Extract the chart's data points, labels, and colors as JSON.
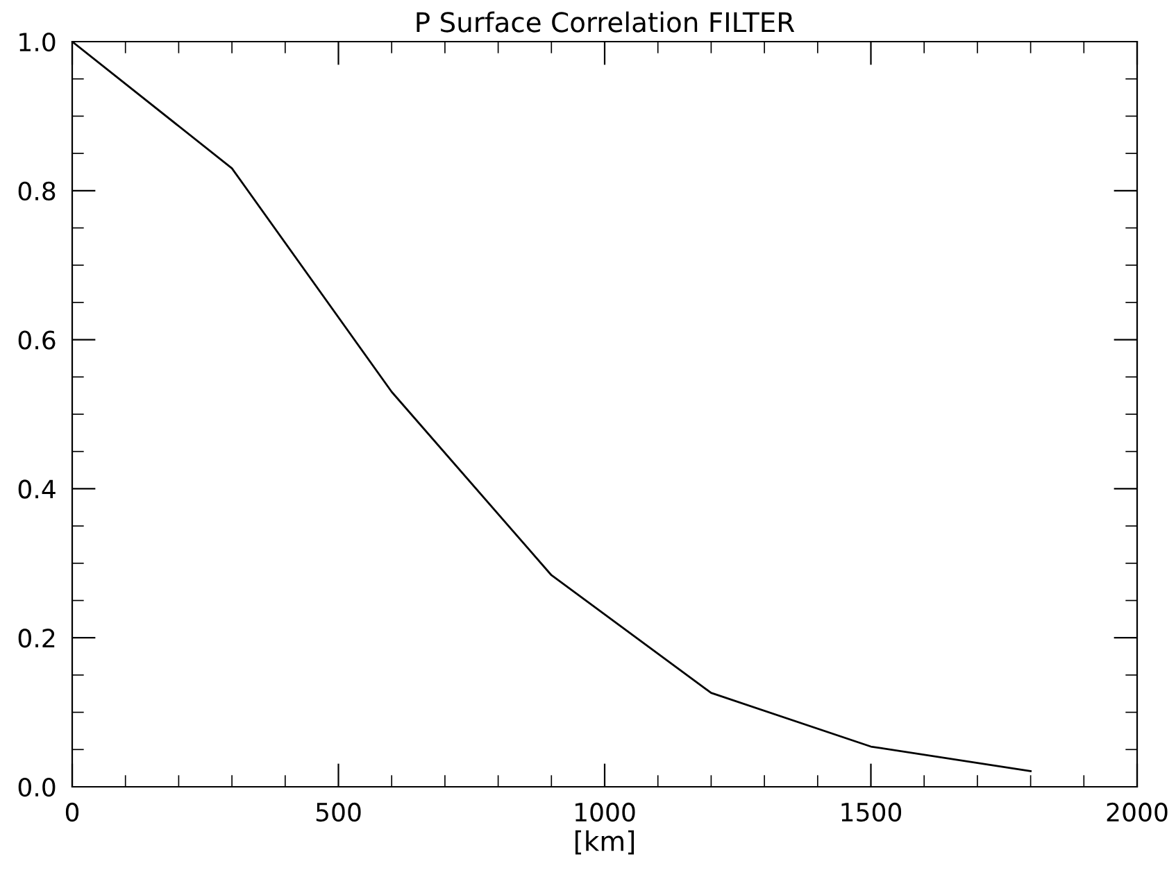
{
  "chart_data": {
    "type": "line",
    "title": "P Surface Correlation FILTER",
    "xlabel": "[km]",
    "x": [
      0,
      300,
      600,
      900,
      1200,
      1500,
      1800
    ],
    "series": [
      {
        "color": "#000000",
        "values": [
          1.0,
          0.83,
          0.53,
          0.284,
          0.126,
          0.054,
          0.021
        ]
      }
    ],
    "xlim": [
      0,
      2000
    ],
    "xticks": [
      0,
      500,
      1000,
      1500,
      2000
    ],
    "ylim": [
      0,
      1
    ],
    "yticks": [
      {
        "value": 0,
        "label": "0.0"
      },
      {
        "value": 0.2,
        "label": "0.2"
      },
      {
        "value": 0.4,
        "label": "0.4"
      },
      {
        "value": 0.6,
        "label": "0.6"
      },
      {
        "value": 0.8,
        "label": "0.8"
      },
      {
        "value": 1,
        "label": "1.0"
      }
    ],
    "grid": false,
    "legend": false,
    "line_style": "solid"
  }
}
